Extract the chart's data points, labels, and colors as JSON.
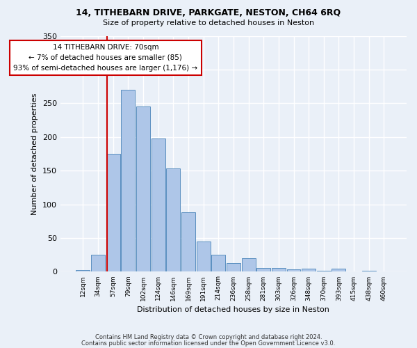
{
  "title1": "14, TITHEBARN DRIVE, PARKGATE, NESTON, CH64 6RQ",
  "title2": "Size of property relative to detached houses in Neston",
  "xlabel": "Distribution of detached houses by size in Neston",
  "ylabel": "Number of detached properties",
  "bin_labels": [
    "12sqm",
    "34sqm",
    "57sqm",
    "79sqm",
    "102sqm",
    "124sqm",
    "146sqm",
    "169sqm",
    "191sqm",
    "214sqm",
    "236sqm",
    "258sqm",
    "281sqm",
    "303sqm",
    "326sqm",
    "348sqm",
    "370sqm",
    "393sqm",
    "415sqm",
    "438sqm",
    "460sqm"
  ],
  "bar_heights": [
    3,
    25,
    175,
    270,
    245,
    198,
    153,
    88,
    45,
    25,
    13,
    20,
    6,
    6,
    4,
    5,
    1,
    5,
    0,
    1,
    0
  ],
  "bar_color": "#aec6e8",
  "bar_edge_color": "#5a8fc0",
  "annotation_text": "14 TITHEBARN DRIVE: 70sqm\n← 7% of detached houses are smaller (85)\n93% of semi-detached houses are larger (1,176) →",
  "annotation_box_color": "#ffffff",
  "annotation_box_edge_color": "#cc0000",
  "vline_color": "#cc0000",
  "footer1": "Contains HM Land Registry data © Crown copyright and database right 2024.",
  "footer2": "Contains public sector information licensed under the Open Government Licence v3.0.",
  "bg_color": "#eaf0f8",
  "plot_bg_color": "#eaf0f8",
  "ylim": [
    0,
    350
  ],
  "grid_color": "#ffffff"
}
